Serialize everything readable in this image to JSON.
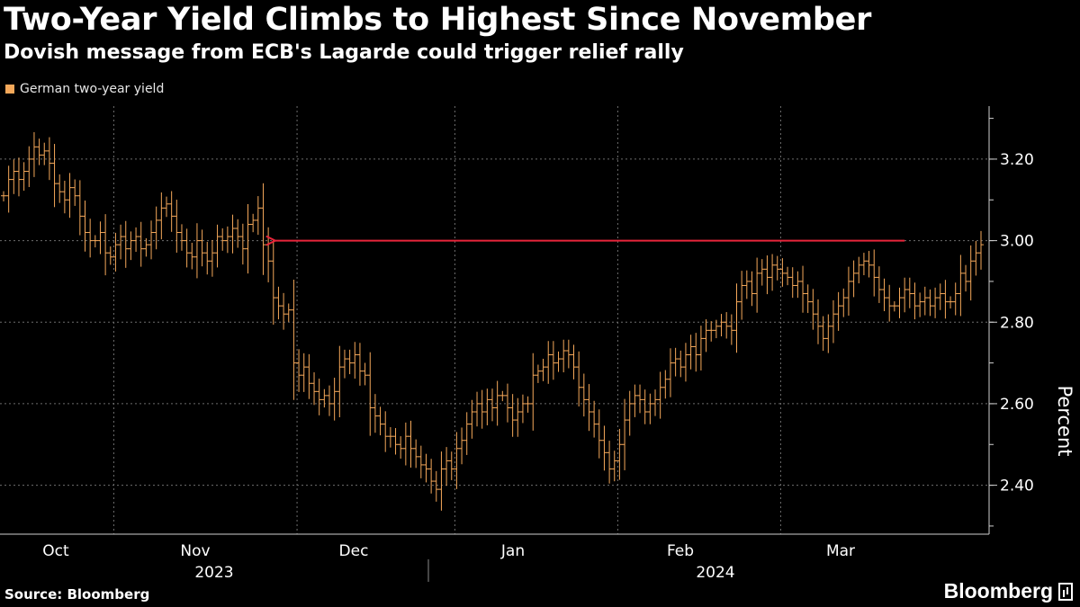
{
  "header": {
    "title": "Two-Year Yield Climbs to Highest Since November",
    "subtitle": "Dovish message from ECB's Lagarde could trigger relief rally"
  },
  "footer": {
    "source": "Source: Bloomberg",
    "brand": "Bloomberg",
    "brand_icon": "bloomberg-terminal-icon"
  },
  "colors": {
    "background": "#000000",
    "series": "#f5a85a",
    "reference_line": "#e8253b",
    "grid": "#6e6e6e"
  },
  "chart_data": {
    "type": "ohlc",
    "title": "Two-Year Yield Climbs to Highest Since November",
    "ylabel": "Percent",
    "xlabel": "",
    "legend": [
      "German two-year yield"
    ],
    "ylim": [
      2.28,
      3.33
    ],
    "yticks": [
      2.4,
      2.6,
      2.8,
      3.0,
      3.2
    ],
    "ytick_labels": [
      "2.40",
      "2.60",
      "2.80",
      "3.00",
      "3.20"
    ],
    "month_labels": [
      "Oct",
      "Nov",
      "Dec",
      "Jan",
      "Feb",
      "Mar"
    ],
    "year_labels": [
      "2023",
      "2024"
    ],
    "reference_line": {
      "value": 3.0,
      "direction": "left-arrow",
      "from_index": 53,
      "to_index": 177
    },
    "series": [
      {
        "name": "German two-year yield",
        "values": [
          3.11,
          3.15,
          3.17,
          3.15,
          3.17,
          3.2,
          3.23,
          3.21,
          3.22,
          3.19,
          3.14,
          3.12,
          3.1,
          3.13,
          3.11,
          3.06,
          3.02,
          3.0,
          3.0,
          3.02,
          2.97,
          2.96,
          2.99,
          3.01,
          2.98,
          3.0,
          3.01,
          2.98,
          2.99,
          3.02,
          3.05,
          3.08,
          3.09,
          3.06,
          3.02,
          3.0,
          2.97,
          2.96,
          3.0,
          2.97,
          2.95,
          2.97,
          3.01,
          3.0,
          3.01,
          3.03,
          3.01,
          2.98,
          3.04,
          3.05,
          3.08,
          2.99,
          2.95,
          2.86,
          2.84,
          2.82,
          2.83,
          2.7,
          2.67,
          2.69,
          2.65,
          2.63,
          2.61,
          2.62,
          2.6,
          2.63,
          2.69,
          2.71,
          2.7,
          2.72,
          2.68,
          2.67,
          2.59,
          2.57,
          2.55,
          2.52,
          2.52,
          2.5,
          2.49,
          2.52,
          2.49,
          2.47,
          2.45,
          2.44,
          2.41,
          2.39,
          2.44,
          2.46,
          2.44,
          2.49,
          2.51,
          2.55,
          2.58,
          2.6,
          2.58,
          2.61,
          2.59,
          2.62,
          2.62,
          2.59,
          2.56,
          2.58,
          2.6,
          2.6,
          2.67,
          2.68,
          2.69,
          2.72,
          2.7,
          2.71,
          2.73,
          2.72,
          2.69,
          2.64,
          2.61,
          2.58,
          2.55,
          2.51,
          2.48,
          2.44,
          2.46,
          2.5,
          2.56,
          2.6,
          2.62,
          2.61,
          2.58,
          2.6,
          2.61,
          2.64,
          2.66,
          2.7,
          2.71,
          2.69,
          2.72,
          2.74,
          2.72,
          2.76,
          2.78,
          2.78,
          2.79,
          2.8,
          2.79,
          2.78,
          2.85,
          2.89,
          2.9,
          2.87,
          2.92,
          2.93,
          2.91,
          2.94,
          2.93,
          2.92,
          2.91,
          2.89,
          2.9,
          2.87,
          2.85,
          2.82,
          2.79,
          2.76,
          2.79,
          2.82,
          2.84,
          2.86,
          2.9,
          2.92,
          2.94,
          2.95,
          2.94,
          2.91,
          2.88,
          2.86,
          2.84,
          2.84,
          2.86,
          2.88,
          2.87,
          2.84,
          2.85,
          2.86,
          2.84,
          2.86,
          2.87,
          2.85,
          2.85,
          2.87,
          2.92,
          2.9,
          2.95,
          2.97,
          2.99
        ]
      }
    ]
  }
}
